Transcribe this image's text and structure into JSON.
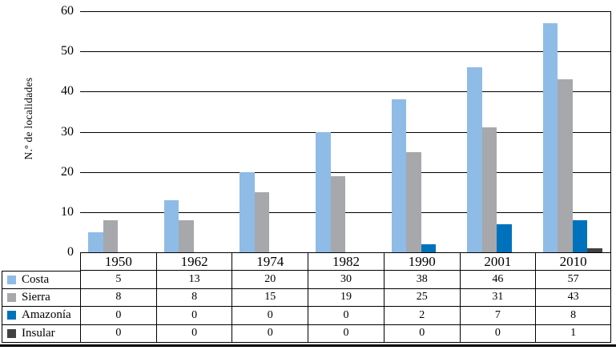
{
  "chart_data": {
    "type": "bar",
    "title": "",
    "xlabel": "",
    "ylabel": "N.º de localidades",
    "categories": [
      "1950",
      "1962",
      "1974",
      "1982",
      "1990",
      "2001",
      "2010"
    ],
    "series": [
      {
        "name": "Costa",
        "color": "#8EBCE6",
        "values": [
          5,
          13,
          20,
          30,
          38,
          46,
          57
        ]
      },
      {
        "name": "Sierra",
        "color": "#A6A8AB",
        "values": [
          8,
          8,
          15,
          19,
          25,
          31,
          43
        ]
      },
      {
        "name": "Amazonía",
        "color": "#0072BC",
        "values": [
          0,
          0,
          0,
          0,
          2,
          7,
          8
        ]
      },
      {
        "name": "Insular",
        "color": "#414042",
        "values": [
          0,
          0,
          0,
          0,
          0,
          0,
          1
        ]
      }
    ],
    "ylim": [
      0,
      60
    ],
    "yticks": [
      0,
      10,
      20,
      30,
      40,
      50,
      60
    ],
    "grid": true,
    "legend_position": "table-rows-left",
    "axis_line_color": "#000000",
    "table_shows_values": true
  }
}
